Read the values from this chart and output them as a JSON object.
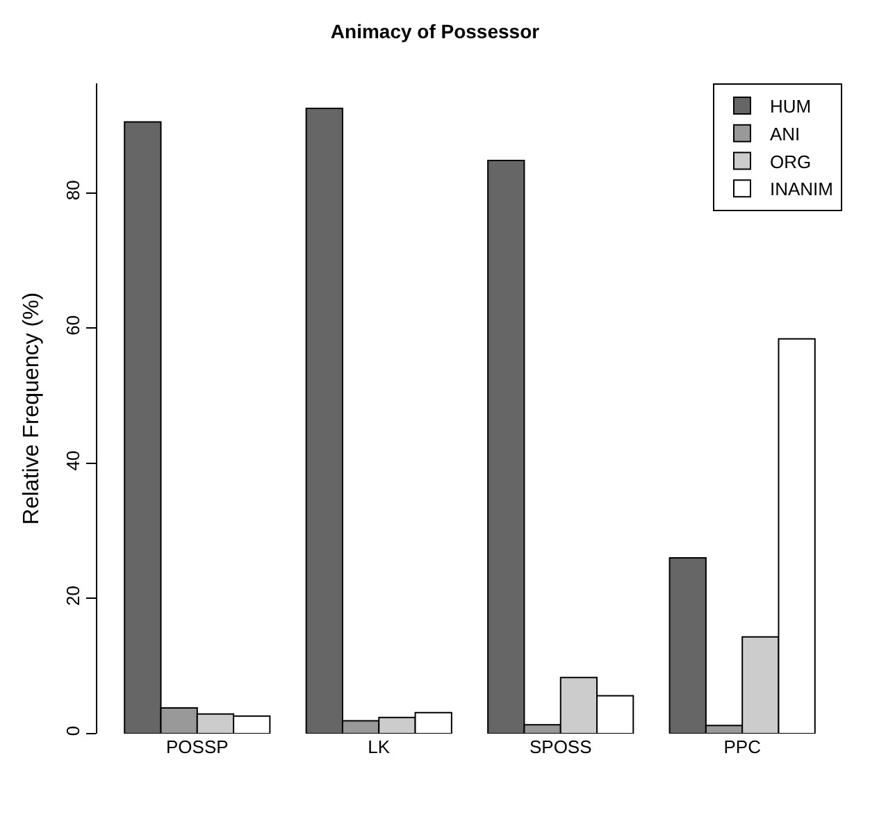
{
  "chart_data": {
    "type": "bar",
    "title": "Animacy of Possessor",
    "ylabel": "Relative Frequency (%)",
    "categories": [
      "POSSP",
      "LK",
      "SPOSS",
      "PPC"
    ],
    "series": [
      {
        "name": "HUM",
        "color": "#666666",
        "values": [
          90.5,
          92.5,
          84.8,
          26.0
        ]
      },
      {
        "name": "ANI",
        "color": "#999999",
        "values": [
          3.8,
          1.9,
          1.3,
          1.2
        ]
      },
      {
        "name": "ORG",
        "color": "#cccccc",
        "values": [
          2.9,
          2.4,
          8.3,
          14.3
        ]
      },
      {
        "name": "INANIM",
        "color": "#ffffff",
        "values": [
          2.6,
          3.1,
          5.6,
          58.4
        ]
      }
    ],
    "ylim": [
      0,
      96.2
    ],
    "yticks": [
      0,
      20,
      40,
      60,
      80
    ],
    "grid": false,
    "legend": "top right"
  }
}
